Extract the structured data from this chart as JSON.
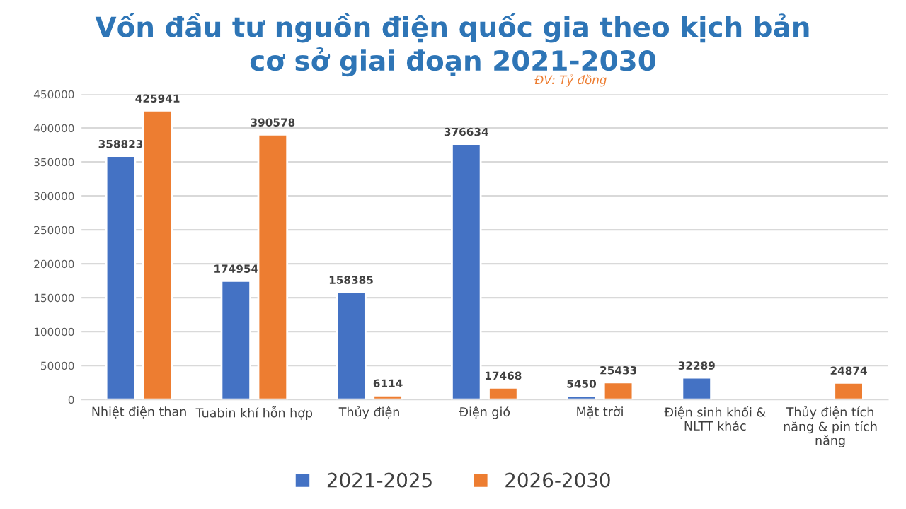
{
  "chart_data": {
    "type": "bar",
    "title": "Vốn đầu tư nguồn điện quốc gia theo kịch bản\ncơ sở giai đoạn 2021-2030",
    "subtitle": "ĐV: Tỷ đồng",
    "categories": [
      "Nhiệt điện than",
      "Tuabin khí hỗn hợp",
      "Thủy điện",
      "Điện gió",
      "Mặt trời",
      "Điện sinh khối &\nNLTT khác",
      "Thủy điện tích\nnăng & pin tích\nnăng"
    ],
    "series": [
      {
        "name": "2021-2025",
        "color": "#4472c4",
        "values": [
          358823,
          174954,
          158385,
          376634,
          5450,
          32289,
          null
        ]
      },
      {
        "name": "2026-2030",
        "color": "#ed7d31",
        "values": [
          425941,
          390578,
          6114,
          17468,
          25433,
          null,
          24874
        ]
      }
    ],
    "ylim": [
      0,
      450000
    ],
    "yticks": [
      0,
      50000,
      100000,
      150000,
      200000,
      250000,
      300000,
      350000,
      400000,
      450000
    ],
    "grid": "y",
    "legend": "bottom",
    "data_labels": true
  }
}
